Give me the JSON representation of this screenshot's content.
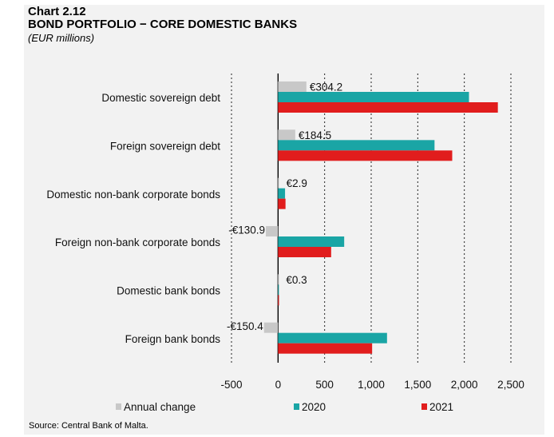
{
  "header": {
    "chart_number": "Chart 2.12",
    "title": "BOND PORTFOLIO − CORE DOMESTIC BANKS",
    "subtitle": "(EUR millions)"
  },
  "source": "Source: Central Bank of Malta.",
  "chart_data": {
    "type": "bar",
    "orientation": "horizontal",
    "categories": [
      "Domestic sovereign debt",
      "Foreign sovereign debt",
      "Domestic non-bank corporate bonds",
      "Foreign non-bank corporate bonds",
      "Domestic bank bonds",
      "Foreign bank bonds"
    ],
    "series": [
      {
        "name": "Annual change",
        "color": "#c8c8c8",
        "values": [
          304.2,
          184.5,
          2.9,
          -130.9,
          0.3,
          -150.4
        ]
      },
      {
        "name": "2020",
        "color": "#1aa5a5",
        "values": [
          2050,
          1680,
          75,
          710,
          5,
          1170
        ]
      },
      {
        "name": "2021",
        "color": "#e11d1d",
        "values": [
          2360,
          1870,
          80,
          570,
          10,
          1010
        ]
      }
    ],
    "data_labels": [
      "€304.2",
      "€184.5",
      "€2.9",
      "-€130.9",
      "€0.3",
      "-€150.4"
    ],
    "xlim": [
      -500,
      2500
    ],
    "xticks": [
      -500,
      0,
      500,
      1000,
      1500,
      2000,
      2500
    ],
    "xtick_labels": [
      "-500",
      "0",
      "500",
      "1,000",
      "1,500",
      "2,000",
      "2,500"
    ],
    "grid": "vertical dotted",
    "legend_position": "bottom"
  }
}
